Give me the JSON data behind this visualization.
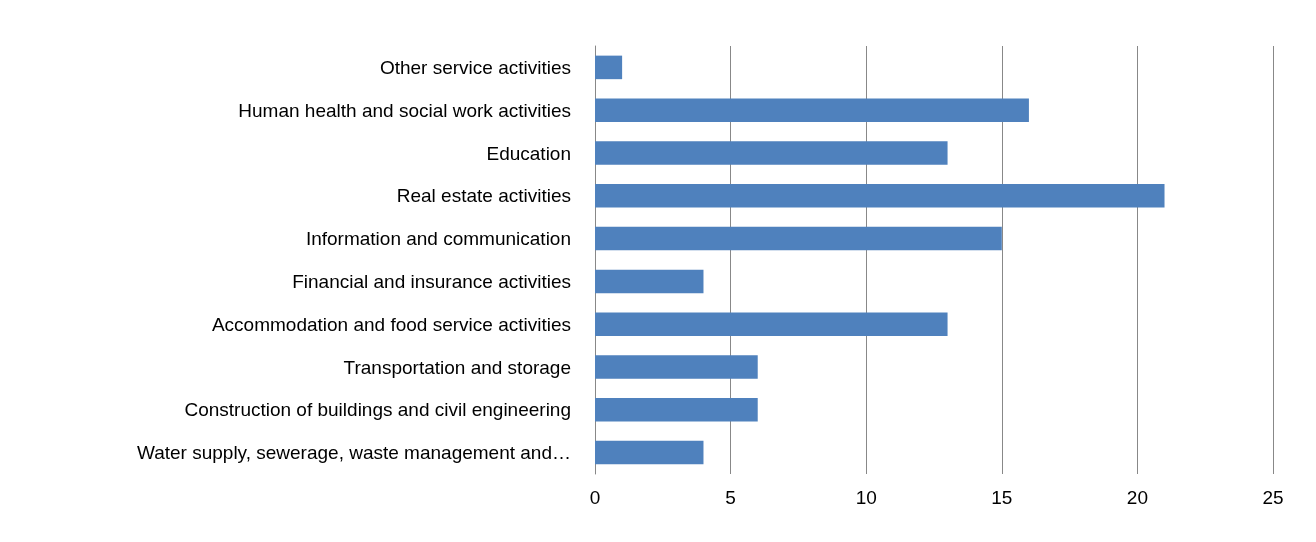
{
  "chart_data": {
    "type": "bar",
    "orientation": "horizontal",
    "categories": [
      "Other service activities",
      "Human health and social work activities",
      "Education",
      "Real estate activities",
      "Information and communication",
      "Financial and insurance activities",
      "Accommodation and food service activities",
      "Transportation and storage",
      "Construction of buildings and civil engineering",
      "Water supply, sewerage, waste management and…"
    ],
    "values": [
      1,
      16,
      13,
      21,
      15,
      4,
      13,
      6,
      6,
      4
    ],
    "color": "#4f81bd",
    "xlim": [
      0,
      25
    ],
    "xticks": [
      0,
      5,
      10,
      15,
      20,
      25
    ],
    "grid": "x"
  }
}
